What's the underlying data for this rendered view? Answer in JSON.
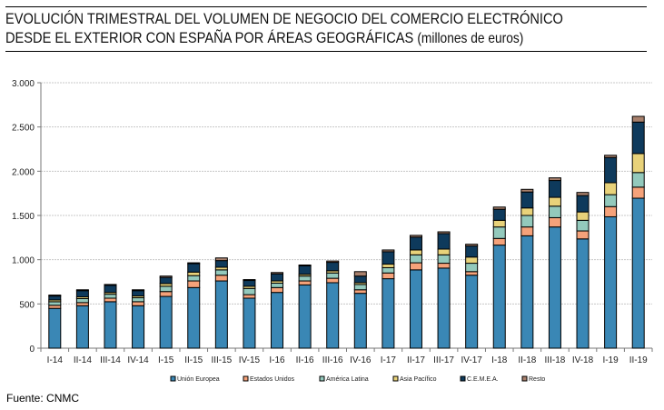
{
  "title": {
    "line1": "EVOLUCIÓN TRIMESTRAL DEL VOLUMEN DE NEGOCIO DEL COMERCIO ELECTRÓNICO",
    "line2": "DESDE EL EXTERIOR CON ESPAÑA POR ÁREAS GEOGRÁFICAS",
    "units": "(millones de euros)"
  },
  "source": "Fuente: CNMC",
  "chart_data": {
    "type": "bar",
    "stacked": true,
    "title": "EVOLUCIÓN TRIMESTRAL DEL VOLUMEN DE NEGOCIO DEL COMERCIO ELECTRÓNICO DESDE EL EXTERIOR CON ESPAÑA POR ÁREAS GEOGRÁFICAS (millones de euros)",
    "xlabel": "",
    "ylabel": "",
    "ylim": [
      0,
      3000
    ],
    "yticks": [
      0,
      500,
      1000,
      1500,
      2000,
      2500,
      3000
    ],
    "ytick_labels": [
      "0",
      "500",
      "1.000",
      "1.500",
      "2.000",
      "2.500",
      "3.000"
    ],
    "grid": true,
    "legend_position": "bottom",
    "categories": [
      "I-14",
      "II-14",
      "III-14",
      "IV-14",
      "I-15",
      "II-15",
      "III-15",
      "IV-15",
      "I-16",
      "II-16",
      "III-16",
      "IV-16",
      "I-17",
      "II-17",
      "III-17",
      "IV-17",
      "I-18",
      "II-18",
      "III-18",
      "IV-18",
      "I-19",
      "II-19"
    ],
    "series": [
      {
        "name": "Unión Europea",
        "color": "#3a87b5",
        "values": [
          450,
          480,
          525,
          480,
          585,
          685,
          760,
          565,
          630,
          715,
          740,
          620,
          785,
          885,
          905,
          825,
          1165,
          1270,
          1370,
          1235,
          1485,
          1695
        ]
      },
      {
        "name": "Estados Unidos",
        "color": "#f5a27a",
        "values": [
          35,
          35,
          40,
          45,
          55,
          75,
          65,
          40,
          55,
          45,
          50,
          40,
          65,
          80,
          55,
          40,
          75,
          100,
          105,
          90,
          115,
          125
        ]
      },
      {
        "name": "América Latina",
        "color": "#93c9bc",
        "values": [
          40,
          45,
          45,
          45,
          60,
          60,
          60,
          70,
          50,
          55,
          60,
          60,
          60,
          90,
          95,
          95,
          130,
          130,
          130,
          120,
          135,
          165
        ]
      },
      {
        "name": "Asia Pacífico",
        "color": "#e8d27a",
        "values": [
          20,
          20,
          20,
          20,
          30,
          40,
          30,
          25,
          25,
          20,
          25,
          20,
          40,
          55,
          65,
          70,
          75,
          85,
          100,
          95,
          135,
          215
        ]
      },
      {
        "name": "C.E.M.E.A.",
        "color": "#0e3a5c",
        "values": [
          45,
          70,
          80,
          60,
          70,
          95,
          75,
          65,
          80,
          95,
          95,
          75,
          140,
          145,
          175,
          125,
          125,
          180,
          190,
          185,
          285,
          355
        ]
      },
      {
        "name": "Resto",
        "color": "#a8806c",
        "values": [
          10,
          10,
          10,
          10,
          15,
          10,
          30,
          10,
          15,
          10,
          15,
          50,
          20,
          20,
          20,
          20,
          25,
          30,
          30,
          35,
          25,
          65
        ]
      }
    ]
  }
}
